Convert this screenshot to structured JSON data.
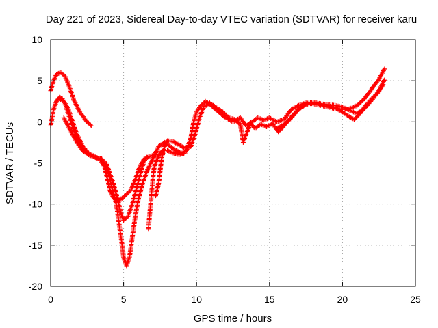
{
  "chart_data": {
    "type": "scatter",
    "title": "Day 221 of 2023, Sidereal Day-to-day VTEC variation (SDTVAR) for receiver karu",
    "xlabel": "GPS time / hours",
    "ylabel": "SDTVAR / TECUs",
    "xlim": [
      0,
      25
    ],
    "ylim": [
      -20,
      10
    ],
    "xticks": [
      "0",
      "5",
      "10",
      "15",
      "20",
      "25"
    ],
    "yticks": [
      "-20",
      "-15",
      "-10",
      "-5",
      "0",
      "5",
      "10"
    ],
    "grid": true,
    "marker": "+",
    "color": "#ff0000",
    "series": [
      {
        "points": [
          [
            0,
            3.8
          ],
          [
            0.2,
            5.0
          ],
          [
            0.4,
            5.8
          ],
          [
            0.7,
            6.0
          ],
          [
            1.0,
            5.5
          ],
          [
            1.3,
            4.2
          ],
          [
            1.6,
            2.6
          ],
          [
            2.0,
            1.2
          ],
          [
            2.4,
            0.2
          ],
          [
            2.8,
            -0.5
          ]
        ]
      },
      {
        "points": [
          [
            0,
            -0.5
          ],
          [
            0.2,
            1.5
          ],
          [
            0.4,
            2.5
          ],
          [
            0.6,
            3.0
          ],
          [
            0.8,
            2.8
          ],
          [
            1.0,
            2.2
          ],
          [
            1.2,
            1.0
          ],
          [
            1.5,
            -0.5
          ],
          [
            1.8,
            -2.0
          ],
          [
            2.1,
            -3.0
          ],
          [
            2.5,
            -3.8
          ],
          [
            3.0,
            -4.3
          ],
          [
            3.5,
            -4.6
          ],
          [
            3.8,
            -5.5
          ],
          [
            4.0,
            -6.5
          ],
          [
            4.2,
            -8.0
          ],
          [
            4.5,
            -10.0
          ],
          [
            4.7,
            -12.5
          ],
          [
            4.9,
            -15.0
          ],
          [
            5.0,
            -16.5
          ],
          [
            5.2,
            -17.5
          ],
          [
            5.4,
            -16.5
          ],
          [
            5.6,
            -14.0
          ],
          [
            5.8,
            -11.5
          ],
          [
            6.0,
            -9.5
          ],
          [
            6.3,
            -7.5
          ],
          [
            6.6,
            -6.0
          ],
          [
            7.0,
            -4.5
          ],
          [
            7.4,
            -3.0
          ],
          [
            7.8,
            -2.5
          ],
          [
            8.2,
            -3.0
          ],
          [
            8.6,
            -3.5
          ],
          [
            9.0,
            -3.8
          ],
          [
            9.3,
            -3.5
          ],
          [
            9.6,
            -2.0
          ],
          [
            9.8,
            0.0
          ],
          [
            10.0,
            1.2
          ],
          [
            10.3,
            2.0
          ],
          [
            10.6,
            2.5
          ],
          [
            11.0,
            2.0
          ],
          [
            11.5,
            1.2
          ],
          [
            12.0,
            0.5
          ],
          [
            12.5,
            0.0
          ],
          [
            13.0,
            0.5
          ],
          [
            13.4,
            -0.5
          ],
          [
            13.8,
            0.0
          ],
          [
            14.2,
            0.5
          ],
          [
            14.6,
            0.2
          ],
          [
            15.0,
            0.5
          ],
          [
            15.5,
            0.0
          ],
          [
            16.0,
            0.3
          ],
          [
            16.5,
            1.5
          ],
          [
            17.0,
            2.0
          ],
          [
            17.5,
            2.3
          ],
          [
            18.0,
            2.2
          ],
          [
            18.5,
            2.0
          ],
          [
            19.0,
            1.8
          ],
          [
            19.5,
            1.6
          ],
          [
            20.0,
            1.5
          ],
          [
            20.5,
            1.6
          ],
          [
            21.0,
            2.0
          ],
          [
            21.5,
            2.8
          ],
          [
            22.0,
            4.0
          ],
          [
            22.5,
            5.2
          ],
          [
            22.9,
            6.5
          ]
        ]
      },
      {
        "points": [
          [
            0.6,
            2.8
          ],
          [
            0.9,
            2.5
          ],
          [
            1.2,
            1.6
          ],
          [
            1.5,
            0.0
          ],
          [
            1.8,
            -1.5
          ],
          [
            2.2,
            -3.0
          ],
          [
            2.6,
            -3.8
          ],
          [
            3.0,
            -4.2
          ],
          [
            3.4,
            -4.6
          ],
          [
            3.7,
            -5.5
          ],
          [
            3.9,
            -7.0
          ],
          [
            4.1,
            -8.5
          ],
          [
            4.3,
            -9.2
          ],
          [
            4.6,
            -9.6
          ],
          [
            4.9,
            -9.3
          ],
          [
            5.2,
            -8.8
          ],
          [
            5.5,
            -8.3
          ],
          [
            5.8,
            -7.0
          ],
          [
            6.1,
            -5.5
          ],
          [
            6.4,
            -4.5
          ],
          [
            6.8,
            -4.2
          ],
          [
            7.2,
            -4.0
          ]
        ]
      },
      {
        "points": [
          [
            0.9,
            0.5
          ],
          [
            1.2,
            -0.5
          ],
          [
            1.5,
            -1.5
          ],
          [
            1.8,
            -2.5
          ],
          [
            2.2,
            -3.5
          ],
          [
            2.6,
            -4.0
          ],
          [
            3.0,
            -4.3
          ],
          [
            3.5,
            -4.5
          ],
          [
            3.8,
            -5.0
          ],
          [
            4.0,
            -6.0
          ],
          [
            4.3,
            -7.5
          ],
          [
            4.6,
            -9.5
          ],
          [
            4.8,
            -11.0
          ],
          [
            5.0,
            -12.0
          ],
          [
            5.3,
            -11.5
          ],
          [
            5.6,
            -10.0
          ],
          [
            5.9,
            -8.0
          ],
          [
            6.2,
            -6.0
          ],
          [
            6.4,
            -4.8
          ],
          [
            6.6,
            -4.3
          ]
        ]
      },
      {
        "points": [
          [
            6.7,
            -13.0
          ],
          [
            6.8,
            -11.0
          ],
          [
            6.9,
            -9.0
          ],
          [
            7.0,
            -7.0
          ],
          [
            7.1,
            -5.5
          ],
          [
            7.3,
            -4.5
          ],
          [
            7.5,
            -3.8
          ],
          [
            7.7,
            -3.5
          ],
          [
            8.0,
            -3.5
          ],
          [
            8.4,
            -3.8
          ],
          [
            8.8,
            -4.0
          ],
          [
            9.2,
            -3.8
          ]
        ]
      },
      {
        "points": [
          [
            7.2,
            -9.0
          ],
          [
            7.4,
            -7.5
          ],
          [
            7.5,
            -6.0
          ],
          [
            7.6,
            -4.5
          ],
          [
            7.8,
            -3.0
          ],
          [
            8.0,
            -2.3
          ],
          [
            8.4,
            -2.4
          ],
          [
            8.8,
            -2.8
          ],
          [
            9.2,
            -3.2
          ],
          [
            9.6,
            -3.0
          ],
          [
            9.9,
            -1.5
          ],
          [
            10.2,
            0.5
          ],
          [
            10.5,
            1.8
          ],
          [
            10.9,
            2.3
          ],
          [
            11.3,
            1.8
          ],
          [
            11.8,
            1.2
          ],
          [
            12.2,
            0.5
          ],
          [
            12.6,
            0.3
          ],
          [
            13.0,
            -0.3
          ],
          [
            13.2,
            -2.5
          ],
          [
            13.4,
            -1.5
          ],
          [
            13.7,
            -0.2
          ],
          [
            14.0,
            -0.8
          ],
          [
            14.4,
            -0.3
          ],
          [
            14.8,
            -0.6
          ],
          [
            15.2,
            -0.2
          ],
          [
            15.6,
            -1.2
          ],
          [
            16.0,
            -0.5
          ],
          [
            16.5,
            0.5
          ],
          [
            17.0,
            1.5
          ],
          [
            17.5,
            2.2
          ],
          [
            18.0,
            2.4
          ],
          [
            18.5,
            2.2
          ],
          [
            19.0,
            2.0
          ],
          [
            19.5,
            1.7
          ],
          [
            20.0,
            1.2
          ],
          [
            20.4,
            0.7
          ],
          [
            20.8,
            0.3
          ],
          [
            21.2,
            1.0
          ],
          [
            21.6,
            2.0
          ],
          [
            22.0,
            2.8
          ],
          [
            22.4,
            3.5
          ],
          [
            22.8,
            4.5
          ]
        ]
      },
      {
        "points": [
          [
            15.5,
            -0.8
          ],
          [
            16.0,
            -0.3
          ],
          [
            16.5,
            0.6
          ],
          [
            17.0,
            1.6
          ],
          [
            17.5,
            2.1
          ],
          [
            18.0,
            2.3
          ],
          [
            18.5,
            2.2
          ],
          [
            19.0,
            2.1
          ],
          [
            19.5,
            2.0
          ],
          [
            20.0,
            1.8
          ],
          [
            20.5,
            1.4
          ],
          [
            21.0,
            1.0
          ],
          [
            21.5,
            1.6
          ],
          [
            22.0,
            2.6
          ],
          [
            22.5,
            3.8
          ],
          [
            22.9,
            5.2
          ]
        ]
      }
    ]
  }
}
